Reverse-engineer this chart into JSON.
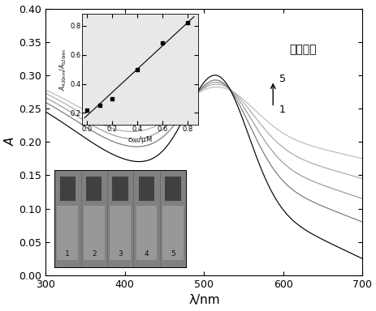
{
  "xlabel": "λ/nm",
  "ylabel": "A",
  "xlim": [
    300,
    700
  ],
  "ylim": [
    0.0,
    0.4
  ],
  "yticks": [
    0.0,
    0.05,
    0.1,
    0.15,
    0.2,
    0.25,
    0.3,
    0.35,
    0.4
  ],
  "xticks": [
    300,
    400,
    500,
    600,
    700
  ],
  "annotation_text": "三聚氰胺",
  "label_1": "1",
  "label_5": "5",
  "inset_scatter_x": [
    0.0,
    0.1,
    0.2,
    0.4,
    0.6,
    0.8
  ],
  "inset_scatter_y": [
    0.22,
    0.255,
    0.295,
    0.5,
    0.68,
    0.82
  ],
  "curve_colors": [
    "#000000",
    "#777777",
    "#999999",
    "#aaaaaa",
    "#bbbbbb"
  ],
  "bg_color": "#ffffff",
  "photo_color": "#808080",
  "inset_bg": "#e8e8e8"
}
